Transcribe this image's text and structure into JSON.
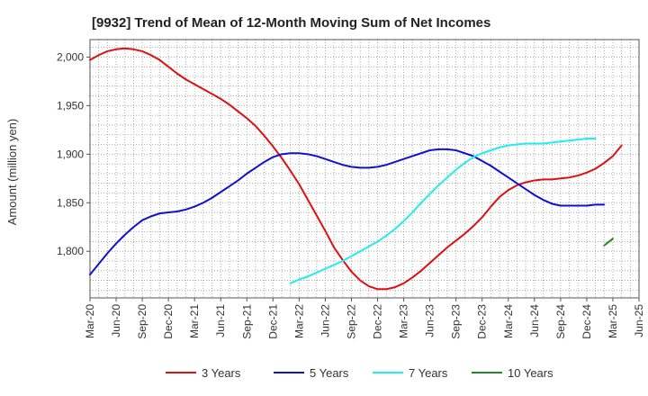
{
  "chart_data": {
    "type": "line",
    "title": "[9932]  Trend of Mean of 12-Month Moving Sum of Net Incomes",
    "xlabel": "",
    "ylabel": "Amount (million yen)",
    "ylim": [
      1752,
      2018
    ],
    "yticks": [
      1800,
      1850,
      1900,
      1950,
      2000
    ],
    "ytick_labels": [
      "1,800",
      "1,850",
      "1,900",
      "1,950",
      "2,000"
    ],
    "x_start": "2020-03",
    "x_end": "2025-06",
    "xticks": [
      "Mar-20",
      "Jun-20",
      "Sep-20",
      "Dec-20",
      "Mar-21",
      "Jun-21",
      "Sep-21",
      "Dec-21",
      "Mar-22",
      "Jun-22",
      "Sep-22",
      "Dec-22",
      "Mar-23",
      "Jun-23",
      "Sep-23",
      "Dec-23",
      "Mar-24",
      "Jun-24",
      "Sep-24",
      "Dec-24",
      "Mar-25",
      "Jun-25"
    ],
    "grid": true,
    "legend_position": "bottom",
    "series": [
      {
        "name": "3 Years",
        "color": "#dd1111",
        "start": "2020-03",
        "values": [
          1997,
          2002,
          2006,
          2008,
          2009,
          2008,
          2006,
          2002,
          1997,
          1990,
          1983,
          1977,
          1972,
          1967,
          1962,
          1957,
          1951,
          1944,
          1937,
          1929,
          1919,
          1908,
          1896,
          1883,
          1869,
          1853,
          1837,
          1821,
          1804,
          1791,
          1779,
          1770,
          1764,
          1761,
          1761,
          1763,
          1767,
          1773,
          1780,
          1788,
          1796,
          1804,
          1811,
          1818,
          1826,
          1835,
          1846,
          1856,
          1863,
          1868,
          1871,
          1873,
          1874,
          1874,
          1875,
          1876,
          1878,
          1881,
          1885,
          1891,
          1898,
          1909
        ]
      },
      {
        "name": "5 Years",
        "color": "#1111cc",
        "start": "2020-03",
        "values": [
          1776,
          1787,
          1798,
          1808,
          1817,
          1825,
          1832,
          1836,
          1839,
          1840,
          1841,
          1843,
          1846,
          1850,
          1855,
          1861,
          1867,
          1873,
          1880,
          1886,
          1892,
          1897,
          1900,
          1901,
          1901,
          1900,
          1898,
          1895,
          1892,
          1889,
          1887,
          1886,
          1886,
          1887,
          1889,
          1892,
          1895,
          1898,
          1901,
          1904,
          1905,
          1905,
          1904,
          1901,
          1898,
          1893,
          1888,
          1882,
          1876,
          1870,
          1864,
          1858,
          1853,
          1849,
          1847,
          1847,
          1847,
          1847,
          1848,
          1848
        ]
      },
      {
        "name": "7 Years",
        "color": "#22eeee",
        "start": "2022-02",
        "values": [
          1767,
          1771,
          1774,
          1778,
          1782,
          1786,
          1790,
          1795,
          1800,
          1805,
          1810,
          1816,
          1823,
          1831,
          1840,
          1850,
          1859,
          1868,
          1876,
          1884,
          1891,
          1897,
          1901,
          1904,
          1907,
          1909,
          1910,
          1911,
          1911,
          1911,
          1912,
          1913,
          1914,
          1915,
          1916,
          1916
        ]
      },
      {
        "name": "10 Years",
        "color": "#228822",
        "start": "2025-02",
        "values": [
          1806,
          1813
        ]
      }
    ]
  }
}
